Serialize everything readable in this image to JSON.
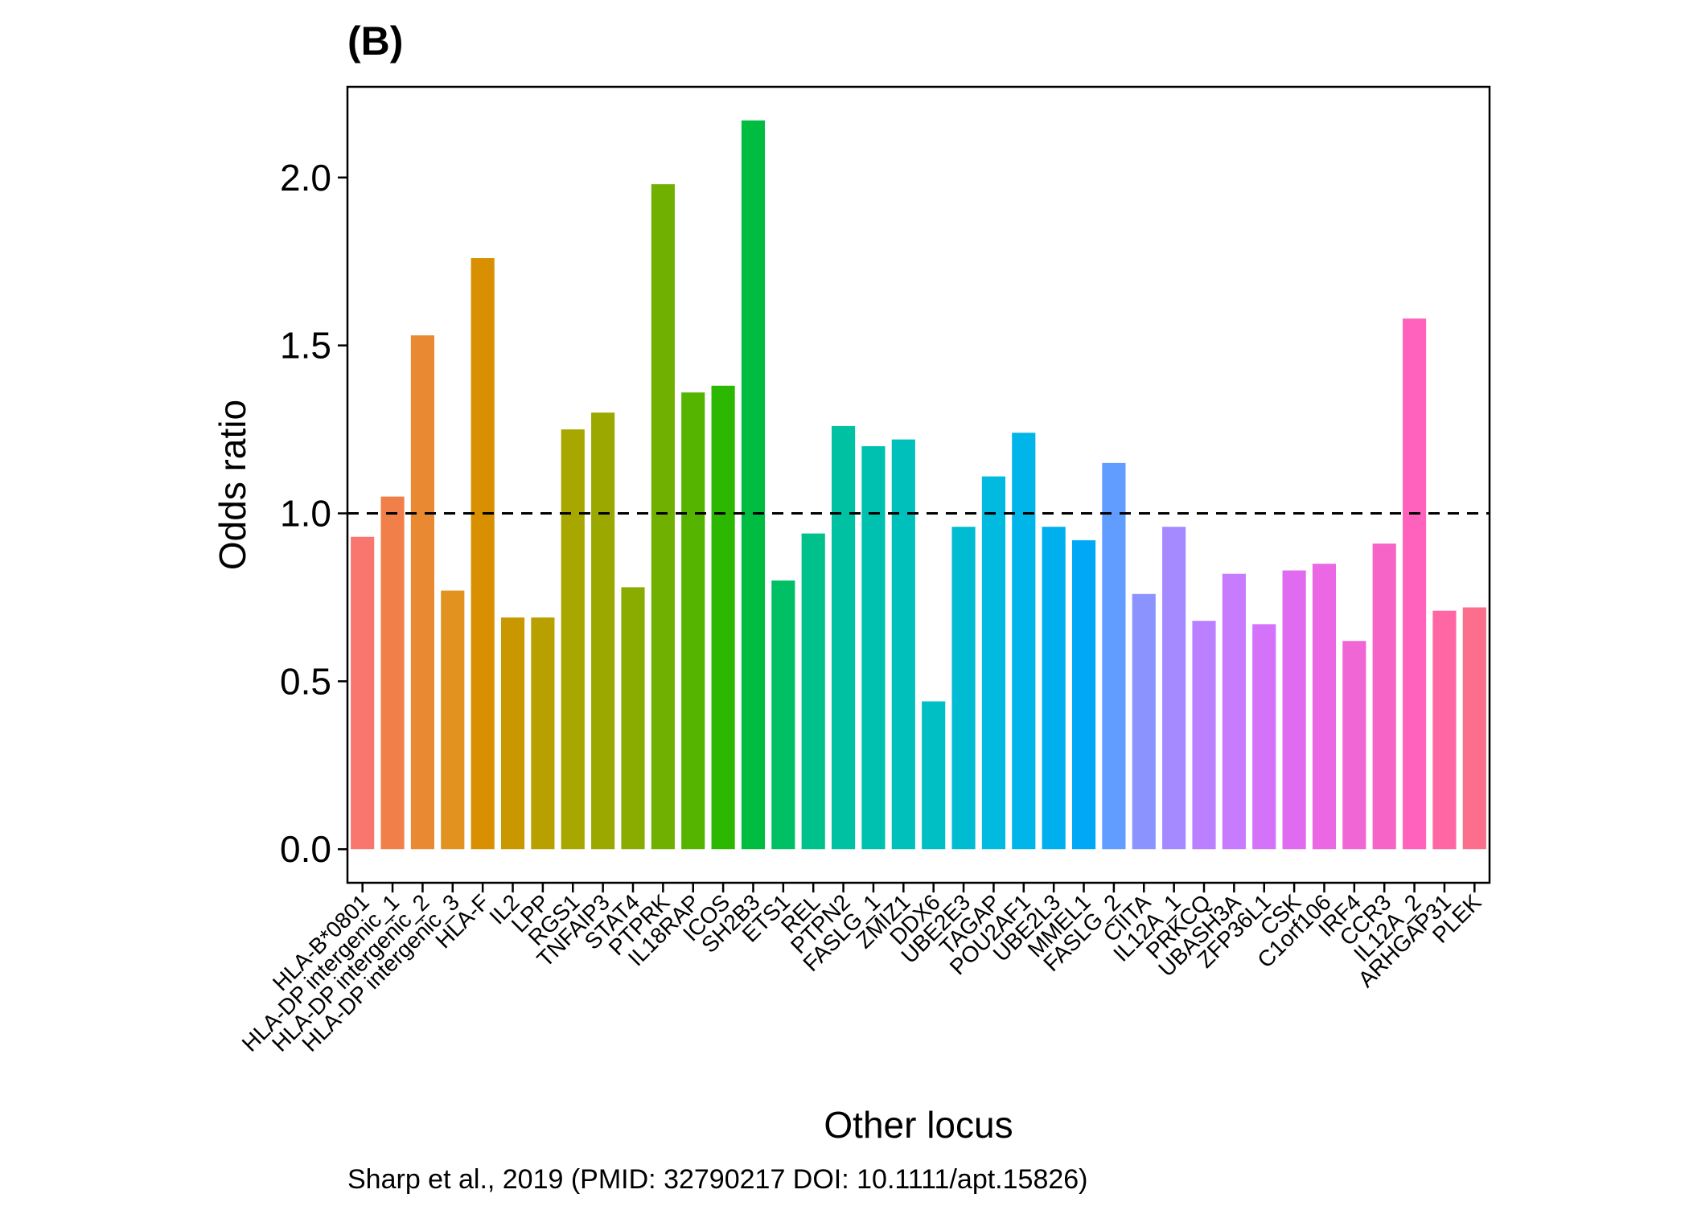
{
  "chart_data": {
    "type": "bar",
    "title": "(B)",
    "xlabel": "Other locus",
    "ylabel": "Odds ratio",
    "caption": "Sharp et al., 2019 (PMID: 32790217 DOI: 10.1111/apt.15826)",
    "ylim": [
      -0.1,
      2.27
    ],
    "yticks": [
      0.0,
      0.5,
      1.0,
      1.5,
      2.0
    ],
    "ytick_labels": [
      "0.0",
      "0.5",
      "1.0",
      "1.5",
      "2.0"
    ],
    "reference_line": 1.0,
    "grid": false,
    "legend": "none",
    "categories": [
      "HLA-B*0801",
      "HLA-DP intergenic_1",
      "HLA-DP intergenic_2",
      "HLA-DP intergenic_3",
      "HLA-F",
      "IL2",
      "LPP",
      "RGS1",
      "TNFAIP3",
      "STAT4",
      "PTPRK",
      "IL18RAP",
      "ICOS",
      "SH2B3",
      "ETS1",
      "REL",
      "PTPN2",
      "FASLG_1",
      "ZMIZ1",
      "DDX6",
      "UBE2E3",
      "TAGAP",
      "POU2AF1",
      "UBE2L3",
      "MMEL1",
      "FASLG_2",
      "CIITA",
      "IL12A_1",
      "PRKCQ",
      "UBASH3A",
      "ZFP36L1",
      "CSK",
      "C1orf106",
      "IRF4",
      "CCR3",
      "IL12A_2",
      "ARHGAP31",
      "PLEK"
    ],
    "values": [
      0.93,
      1.05,
      1.53,
      0.77,
      1.76,
      0.69,
      0.69,
      1.25,
      1.3,
      0.78,
      1.98,
      1.36,
      1.38,
      2.17,
      0.8,
      0.94,
      1.26,
      1.2,
      1.22,
      0.44,
      0.96,
      1.11,
      1.24,
      0.96,
      0.92,
      1.15,
      0.76,
      0.96,
      0.68,
      0.82,
      0.67,
      0.83,
      0.85,
      0.62,
      0.91,
      1.58,
      0.71,
      0.72
    ],
    "colors": [
      "#F8766D",
      "#F07F4A",
      "#E98A33",
      "#E2921E",
      "#D89000",
      "#C99800",
      "#B8A000",
      "#A7A700",
      "#9AA800",
      "#8AAC00",
      "#6FB000",
      "#55B400",
      "#2CB800",
      "#00BC40",
      "#00BF65",
      "#00C08B",
      "#00C1A2",
      "#00C0B0",
      "#00C0BC",
      "#00BFC4",
      "#00BCD2",
      "#00BAE0",
      "#00B5EA",
      "#00AFEE",
      "#00A8F6",
      "#619CFF",
      "#8B93FF",
      "#A58AFF",
      "#BA80FF",
      "#C77CFF",
      "#D572FA",
      "#E16BF0",
      "#EA68E3",
      "#F066D5",
      "#F564C6",
      "#FF62BC",
      "#FF67A4",
      "#FB6F8C"
    ]
  }
}
